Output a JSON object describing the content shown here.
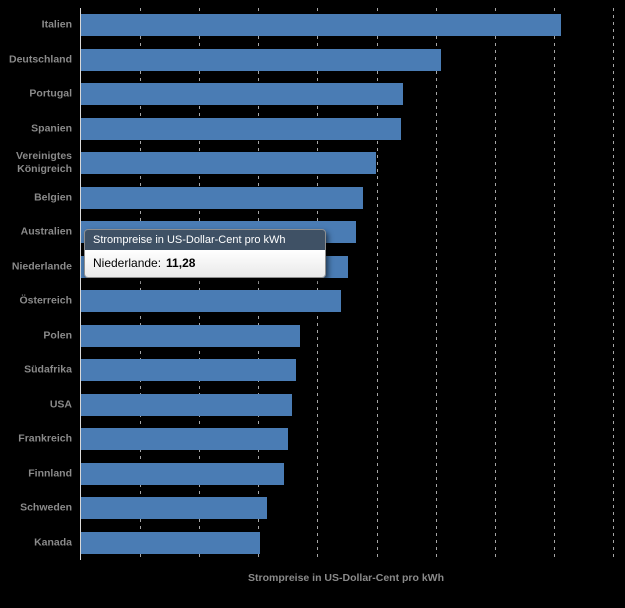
{
  "chart_data": {
    "type": "bar",
    "orientation": "horizontal",
    "title": "",
    "xlabel": "Strompreise in US-Dollar-Cent pro kWh",
    "ylabel": "",
    "categories": [
      "Italien",
      "Deutschland",
      "Portugal",
      "Spanien",
      "Vereinigtes Königreich",
      "Belgien",
      "Australien",
      "Niederlande",
      "Österreich",
      "Polen",
      "Südafrika",
      "USA",
      "Frankreich",
      "Finnland",
      "Schweden",
      "Kanada"
    ],
    "values": [
      20.28,
      15.21,
      13.61,
      13.52,
      12.47,
      11.91,
      11.62,
      11.28,
      11.0,
      9.25,
      9.08,
      8.91,
      8.74,
      8.58,
      7.86,
      7.56
    ],
    "xlim": [
      0,
      22.5
    ],
    "xticks": [
      2.5,
      5,
      7.5,
      10,
      12.5,
      15,
      17.5,
      20,
      22.5
    ],
    "grid": "dashed-vertical",
    "legend": "none",
    "bar_color": "#4a7cb4",
    "background": "#000000"
  },
  "tooltip": {
    "title": "Strompreise in US-Dollar-Cent pro kWh",
    "label": "Niederlande:",
    "value": "11,28",
    "header_color": "#3f5165"
  }
}
